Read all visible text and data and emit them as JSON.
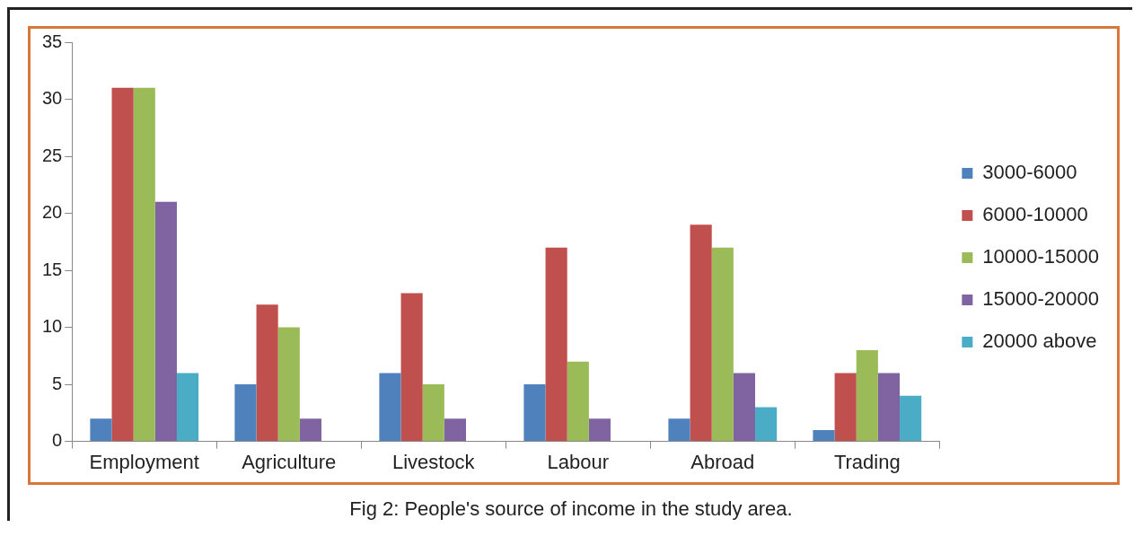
{
  "chart_data": {
    "type": "bar",
    "categories": [
      "Employment",
      "Agriculture",
      "Livestock",
      "Labour",
      "Abroad",
      "Trading"
    ],
    "series": [
      {
        "name": "3000-6000",
        "color": "#4f81bd",
        "values": [
          2,
          5,
          6,
          5,
          2,
          1
        ]
      },
      {
        "name": "6000-10000",
        "color": "#c0504d",
        "values": [
          31,
          12,
          13,
          17,
          19,
          6
        ]
      },
      {
        "name": "10000-15000",
        "color": "#9bbb59",
        "values": [
          31,
          10,
          5,
          7,
          17,
          8
        ]
      },
      {
        "name": "15000-20000",
        "color": "#8064a2",
        "values": [
          21,
          2,
          2,
          2,
          6,
          6
        ]
      },
      {
        "name": "20000 above",
        "color": "#4bacc6",
        "values": [
          6,
          null,
          null,
          null,
          3,
          4
        ]
      }
    ],
    "ylim": [
      0,
      35
    ],
    "yticks": [
      0,
      5,
      10,
      15,
      20,
      25,
      30,
      35
    ],
    "grid": false,
    "legend": "right",
    "annotations": [
      "Fig 2: People's source of income in the study area."
    ]
  }
}
